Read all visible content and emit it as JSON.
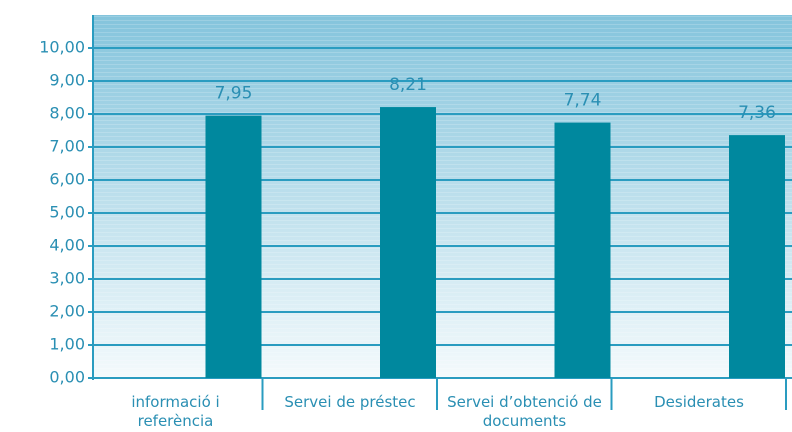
{
  "chart_data": {
    "type": "bar",
    "categories": [
      "informació i referència",
      "Servei de préstec",
      "Servei d’obtenció de documents",
      "Desiderates"
    ],
    "values": [
      7.95,
      8.21,
      7.74,
      7.36
    ],
    "value_labels": [
      "7,95",
      "8,21",
      "7,74",
      "7,36"
    ],
    "color": "#00889e",
    "ylim": [
      0,
      11
    ],
    "yticks": [
      {
        "value": 0,
        "label": "0,00"
      },
      {
        "value": 1,
        "label": "1,00"
      },
      {
        "value": 2,
        "label": "2,00"
      },
      {
        "value": 3,
        "label": "3,00"
      },
      {
        "value": 4,
        "label": "4,00"
      },
      {
        "value": 5,
        "label": "5,00"
      },
      {
        "value": 6,
        "label": "6,00"
      },
      {
        "value": 7,
        "label": "7,00"
      },
      {
        "value": 8,
        "label": "8,00"
      },
      {
        "value": 9,
        "label": "9,00"
      },
      {
        "value": 10,
        "label": "10,00"
      }
    ],
    "grid": true
  }
}
